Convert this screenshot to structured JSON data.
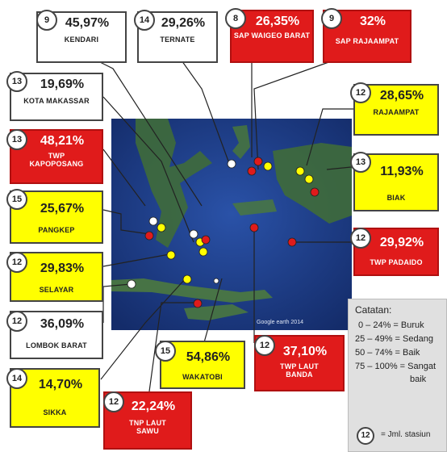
{
  "stations": [
    {
      "id": "kendari",
      "value": "45,97%",
      "name": "KENDARI",
      "count": "9",
      "color": "white"
    },
    {
      "id": "ternate",
      "value": "29,26%",
      "name": "TERNATE",
      "count": "14",
      "color": "white"
    },
    {
      "id": "sap-waigeo",
      "value": "26,35%",
      "name": "SAP WAIGEO BARAT",
      "count": "8",
      "color": "red"
    },
    {
      "id": "sap-rajaampat",
      "value": "32%",
      "name": "SAP RAJAAMPAT",
      "count": "9",
      "color": "red"
    },
    {
      "id": "kota-makassar",
      "value": "19,69%",
      "name": "KOTA MAKASSAR",
      "count": "13",
      "color": "white"
    },
    {
      "id": "rajaampat",
      "value": "28,65%",
      "name": "RAJAAMPAT",
      "count": "12",
      "color": "yellow"
    },
    {
      "id": "twp-kapoposang",
      "value": "48,21%",
      "name": "TWP KAPOPOSANG",
      "count": "13",
      "color": "red"
    },
    {
      "id": "biak",
      "value": "11,93%",
      "name": "BIAK",
      "count": "13",
      "color": "yellow"
    },
    {
      "id": "pangkep",
      "value": "25,67%",
      "name": "PANGKEP",
      "count": "15",
      "color": "yellow"
    },
    {
      "id": "twp-padaido",
      "value": "29,92%",
      "name": "TWP PADAIDO",
      "count": "12",
      "color": "red"
    },
    {
      "id": "selayar",
      "value": "29,83%",
      "name": "SELAYAR",
      "count": "12",
      "color": "yellow"
    },
    {
      "id": "lombok-barat",
      "value": "36,09%",
      "name": "LOMBOK BARAT",
      "count": "12",
      "color": "white"
    },
    {
      "id": "sikka",
      "value": "14,70%",
      "name": "SIKKA",
      "count": "14",
      "color": "yellow"
    },
    {
      "id": "wakatobi",
      "value": "54,86%",
      "name": "WAKATOBI",
      "count": "15",
      "color": "yellow"
    },
    {
      "id": "twp-laut-banda",
      "value": "37,10%",
      "name": "TWP LAUT BANDA",
      "count": "12",
      "color": "red"
    },
    {
      "id": "tnp-laut-sawu",
      "value": "22,24%",
      "name": "TNP LAUT SAWU",
      "count": "12",
      "color": "red"
    }
  ],
  "map": {
    "credit": "Google earth 2014"
  },
  "legend": {
    "title": "Catatan:",
    "rows": [
      "0 – 24% = Buruk",
      "25 – 49% = Sedang",
      "50 – 74% = Baik",
      "75 – 100% = Sangat",
      "baik"
    ],
    "badge": "12",
    "badge_note": "= Jml. stasiun"
  },
  "colors": {
    "red": "#e01b1b",
    "yellow": "#ffff00",
    "white": "#ffffff",
    "sea": "#1d3d8a",
    "land": "#3f6b3a"
  }
}
